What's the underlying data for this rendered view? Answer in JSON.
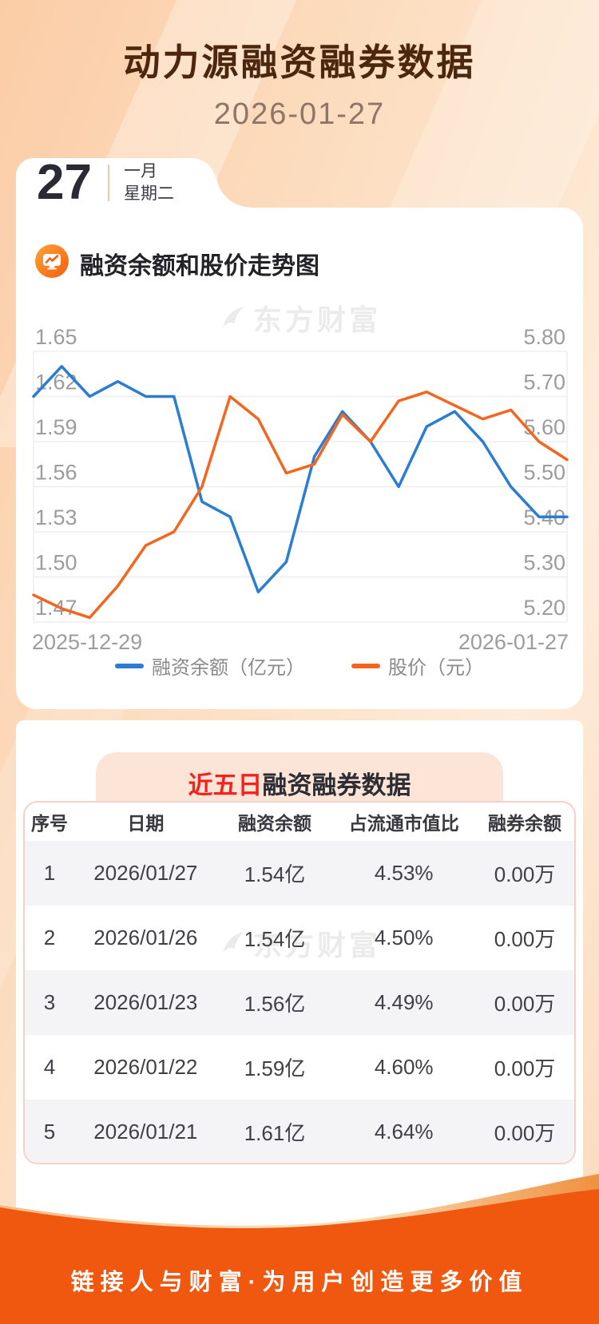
{
  "header": {
    "title": "动力源融资融券数据",
    "date": "2026-01-27"
  },
  "date_card": {
    "day": "27",
    "month": "一月",
    "weekday": "星期二"
  },
  "chart_section": {
    "title": "融资余额和股价走势图",
    "watermark": "东方财富"
  },
  "chart_data": {
    "type": "line",
    "title": "融资余额和股价走势图",
    "x_labels": [
      "2025-12-29",
      "2026-01-27"
    ],
    "num_points": 20,
    "left_axis": {
      "min": 1.47,
      "max": 1.65,
      "ticks": [
        1.65,
        1.62,
        1.59,
        1.56,
        1.53,
        1.5,
        1.47
      ]
    },
    "right_axis": {
      "min": 5.2,
      "max": 5.8,
      "ticks": [
        5.8,
        5.7,
        5.6,
        5.5,
        5.4,
        5.3,
        5.2
      ]
    },
    "grid": true,
    "legend_position": "bottom",
    "series": [
      {
        "name": "融资余额（亿元）",
        "color": "#2a7dd2",
        "axis": "left",
        "values": [
          1.62,
          1.64,
          1.62,
          1.63,
          1.62,
          1.62,
          1.55,
          1.54,
          1.49,
          1.51,
          1.58,
          1.61,
          1.59,
          1.56,
          1.6,
          1.61,
          1.59,
          1.56,
          1.54,
          1.54
        ]
      },
      {
        "name": "股价（元）",
        "color": "#f4661f",
        "axis": "right",
        "values": [
          5.26,
          5.23,
          5.21,
          5.28,
          5.37,
          5.4,
          5.5,
          5.7,
          5.65,
          5.53,
          5.55,
          5.66,
          5.6,
          5.69,
          5.71,
          5.68,
          5.65,
          5.67,
          5.6,
          5.56
        ]
      }
    ]
  },
  "table_section": {
    "title_highlight": "近五日",
    "title_rest": "融资融券数据",
    "watermark": "东方财富",
    "columns": [
      "序号",
      "日期",
      "融资余额",
      "占流通市值比",
      "融券余额"
    ],
    "rows": [
      [
        "1",
        "2026/01/27",
        "1.54亿",
        "4.53%",
        "0.00万"
      ],
      [
        "2",
        "2026/01/26",
        "1.54亿",
        "4.50%",
        "0.00万"
      ],
      [
        "3",
        "2026/01/23",
        "1.56亿",
        "4.49%",
        "0.00万"
      ],
      [
        "4",
        "2026/01/22",
        "1.59亿",
        "4.60%",
        "0.00万"
      ],
      [
        "5",
        "2026/01/21",
        "1.61亿",
        "4.64%",
        "0.00万"
      ]
    ]
  },
  "footer": {
    "slogan": "链接人与财富·为用户创造更多价值"
  },
  "colors": {
    "line_blue": "#2a7dd2",
    "line_orange": "#f4661f",
    "accent_red": "#f4221c",
    "footer_orange": "#f0570f",
    "title_brown": "#4c260d",
    "grid_gray": "#ededed"
  }
}
